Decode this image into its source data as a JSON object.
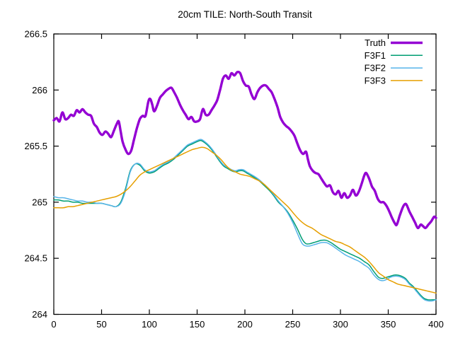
{
  "window": {
    "background": "#ffffff"
  },
  "chart_data": {
    "type": "line",
    "title": "20cm TILE: North-South Transit",
    "xlabel": "",
    "ylabel": "",
    "x_range": [
      0,
      400
    ],
    "y_range": [
      264.0,
      266.5
    ],
    "x_ticks": [
      0,
      50,
      100,
      150,
      200,
      250,
      300,
      350,
      400
    ],
    "x_tick_labels": [
      "0",
      "50",
      "100",
      "150",
      "200",
      "250",
      "300",
      "350",
      "400"
    ],
    "y_ticks": [
      264,
      264.5,
      265,
      265.5,
      266,
      266.5
    ],
    "y_tick_labels": [
      "264",
      "264.5",
      "265",
      "265.5",
      "266",
      "266.5"
    ],
    "grid": false,
    "legend_position": "top-right-inside",
    "axis_color": "#000000",
    "text_color": "#000000",
    "series": [
      {
        "name": "Truth",
        "color": "#9400d3",
        "line_width": 3.4,
        "x": [
          0,
          3,
          6,
          9,
          12,
          15,
          18,
          21,
          24,
          27,
          30,
          33,
          36,
          39,
          42,
          45,
          48,
          51,
          54,
          57,
          60,
          63,
          66,
          68,
          70,
          72,
          75,
          78,
          81,
          84,
          87,
          90,
          93,
          96,
          99,
          101,
          103,
          105,
          108,
          111,
          114,
          117,
          120,
          123,
          126,
          129,
          132,
          135,
          138,
          141,
          144,
          147,
          150,
          153,
          156,
          159,
          162,
          165,
          168,
          171,
          174,
          177,
          180,
          183,
          186,
          189,
          192,
          195,
          198,
          201,
          204,
          207,
          210,
          213,
          216,
          219,
          222,
          225,
          228,
          231,
          234,
          237,
          240,
          243,
          246,
          249,
          252,
          255,
          258,
          261,
          264,
          266,
          268,
          271,
          274,
          277,
          280,
          283,
          286,
          289,
          292,
          295,
          298,
          301,
          304,
          307,
          310,
          313,
          316,
          319,
          322,
          325,
          327,
          330,
          333,
          336,
          339,
          342,
          345,
          348,
          351,
          354,
          357,
          359,
          362,
          365,
          367,
          369,
          372,
          375,
          378,
          381,
          384,
          386,
          389,
          392,
          395,
          398,
          400
        ],
        "y": [
          265.73,
          265.75,
          265.72,
          265.8,
          265.74,
          265.75,
          265.78,
          265.77,
          265.82,
          265.8,
          265.83,
          265.8,
          265.78,
          265.77,
          265.7,
          265.67,
          265.62,
          265.6,
          265.63,
          265.61,
          265.58,
          265.64,
          265.7,
          265.72,
          265.63,
          265.54,
          265.47,
          265.43,
          265.46,
          265.56,
          265.66,
          265.74,
          265.77,
          265.77,
          265.9,
          265.92,
          265.87,
          265.81,
          265.86,
          265.93,
          265.96,
          265.99,
          266.01,
          266.02,
          265.98,
          265.93,
          265.87,
          265.82,
          265.78,
          265.74,
          265.76,
          265.72,
          265.72,
          265.74,
          265.83,
          265.78,
          265.78,
          265.82,
          265.86,
          265.91,
          266.0,
          266.1,
          266.13,
          266.1,
          266.15,
          266.13,
          266.16,
          266.15,
          266.08,
          266.04,
          266.03,
          265.96,
          265.92,
          265.98,
          266.02,
          266.04,
          266.04,
          266.01,
          265.98,
          265.92,
          265.85,
          265.76,
          265.71,
          265.68,
          265.66,
          265.63,
          265.59,
          265.52,
          265.46,
          265.43,
          265.45,
          265.38,
          265.32,
          265.28,
          265.26,
          265.25,
          265.21,
          265.17,
          265.14,
          265.15,
          265.09,
          265.07,
          265.1,
          265.04,
          265.08,
          265.04,
          265.06,
          265.11,
          265.06,
          265.09,
          265.16,
          265.24,
          265.26,
          265.21,
          265.14,
          265.1,
          265.03,
          265.0,
          265.0,
          264.97,
          264.92,
          264.86,
          264.81,
          264.8,
          264.88,
          264.95,
          264.98,
          264.98,
          264.92,
          264.87,
          264.82,
          264.77,
          264.8,
          264.79,
          264.77,
          264.8,
          264.83,
          264.87,
          264.86
        ]
      },
      {
        "name": "F3F1",
        "color": "#009e73",
        "line_width": 1.5,
        "x": [
          0,
          5,
          10,
          15,
          20,
          25,
          30,
          35,
          40,
          45,
          50,
          55,
          60,
          65,
          70,
          75,
          80,
          85,
          90,
          95,
          100,
          105,
          110,
          115,
          120,
          125,
          130,
          135,
          140,
          145,
          150,
          154,
          158,
          162,
          166,
          170,
          174,
          178,
          182,
          186,
          190,
          194,
          198,
          202,
          206,
          210,
          215,
          220,
          225,
          230,
          235,
          240,
          245,
          250,
          255,
          260,
          264,
          268,
          272,
          276,
          280,
          285,
          290,
          295,
          300,
          305,
          310,
          315,
          320,
          325,
          330,
          335,
          340,
          344,
          348,
          352,
          356,
          360,
          364,
          368,
          372,
          376,
          380,
          384,
          388,
          392,
          396,
          400
        ],
        "y": [
          265.02,
          265.02,
          265.01,
          265.01,
          265.0,
          265.0,
          264.99,
          264.99,
          264.99,
          264.99,
          264.99,
          264.98,
          264.97,
          264.96,
          265.0,
          265.12,
          265.28,
          265.34,
          265.33,
          265.28,
          265.26,
          265.27,
          265.3,
          265.33,
          265.35,
          265.38,
          265.42,
          265.46,
          265.5,
          265.52,
          265.54,
          265.55,
          265.53,
          265.5,
          265.46,
          265.41,
          265.36,
          265.32,
          265.3,
          265.28,
          265.27,
          265.28,
          265.28,
          265.26,
          265.24,
          265.22,
          265.19,
          265.15,
          265.11,
          265.06,
          265.0,
          264.96,
          264.91,
          264.84,
          264.76,
          264.67,
          264.63,
          264.63,
          264.64,
          264.65,
          264.66,
          264.66,
          264.64,
          264.61,
          264.58,
          264.56,
          264.54,
          264.52,
          264.5,
          264.47,
          264.44,
          264.38,
          264.33,
          264.32,
          264.33,
          264.34,
          264.35,
          264.35,
          264.34,
          264.32,
          264.28,
          264.25,
          264.21,
          264.17,
          264.14,
          264.13,
          264.13,
          264.13
        ]
      },
      {
        "name": "F3F2",
        "color": "#56b4e9",
        "line_width": 1.5,
        "x": [
          0,
          5,
          10,
          15,
          20,
          25,
          30,
          35,
          40,
          45,
          50,
          55,
          60,
          65,
          70,
          75,
          80,
          85,
          90,
          95,
          100,
          105,
          110,
          115,
          120,
          125,
          130,
          135,
          140,
          145,
          150,
          154,
          158,
          162,
          166,
          170,
          174,
          178,
          182,
          186,
          190,
          194,
          198,
          202,
          206,
          210,
          215,
          220,
          225,
          230,
          235,
          240,
          245,
          250,
          255,
          260,
          264,
          268,
          272,
          276,
          280,
          285,
          290,
          295,
          300,
          305,
          310,
          315,
          320,
          325,
          330,
          335,
          340,
          344,
          348,
          352,
          356,
          360,
          364,
          368,
          372,
          376,
          380,
          384,
          388,
          392,
          396,
          400
        ],
        "y": [
          265.05,
          265.04,
          265.04,
          265.03,
          265.02,
          265.01,
          265.01,
          265.0,
          265.0,
          264.99,
          264.99,
          264.98,
          264.97,
          264.96,
          264.99,
          265.1,
          265.27,
          265.34,
          265.34,
          265.29,
          265.27,
          265.28,
          265.31,
          265.34,
          265.36,
          265.39,
          265.43,
          265.47,
          265.51,
          265.53,
          265.55,
          265.56,
          265.54,
          265.51,
          265.47,
          265.42,
          265.37,
          265.33,
          265.31,
          265.29,
          265.28,
          265.29,
          265.29,
          265.27,
          265.25,
          265.23,
          265.2,
          265.16,
          265.12,
          265.07,
          265.01,
          264.96,
          264.9,
          264.82,
          264.72,
          264.63,
          264.61,
          264.61,
          264.62,
          264.63,
          264.64,
          264.64,
          264.62,
          264.59,
          264.56,
          264.53,
          264.51,
          264.49,
          264.47,
          264.44,
          264.41,
          264.35,
          264.31,
          264.3,
          264.31,
          264.33,
          264.34,
          264.34,
          264.33,
          264.31,
          264.27,
          264.24,
          264.2,
          264.16,
          264.13,
          264.12,
          264.12,
          264.13
        ]
      },
      {
        "name": "F3F3",
        "color": "#e69f00",
        "line_width": 1.5,
        "x": [
          0,
          5,
          10,
          15,
          20,
          25,
          30,
          35,
          40,
          45,
          50,
          55,
          60,
          65,
          70,
          75,
          80,
          85,
          90,
          95,
          100,
          105,
          110,
          115,
          120,
          125,
          130,
          135,
          140,
          145,
          150,
          155,
          160,
          165,
          170,
          175,
          180,
          185,
          190,
          195,
          200,
          205,
          210,
          215,
          220,
          225,
          230,
          235,
          240,
          245,
          250,
          255,
          260,
          265,
          270,
          275,
          280,
          285,
          290,
          295,
          300,
          305,
          310,
          315,
          320,
          325,
          330,
          335,
          340,
          345,
          350,
          355,
          360,
          365,
          370,
          375,
          380,
          385,
          390,
          395,
          400
        ],
        "y": [
          264.95,
          264.95,
          264.95,
          264.96,
          264.96,
          264.97,
          264.98,
          264.99,
          265.0,
          265.01,
          265.02,
          265.03,
          265.04,
          265.05,
          265.07,
          265.1,
          265.14,
          265.19,
          265.24,
          265.27,
          265.29,
          265.31,
          265.33,
          265.35,
          265.37,
          265.39,
          265.41,
          265.43,
          265.45,
          265.47,
          265.48,
          265.49,
          265.48,
          265.45,
          265.42,
          265.38,
          265.33,
          265.29,
          265.27,
          265.25,
          265.24,
          265.23,
          265.21,
          265.19,
          265.16,
          265.12,
          265.08,
          265.04,
          265.0,
          264.96,
          264.91,
          264.86,
          264.82,
          264.79,
          264.77,
          264.74,
          264.71,
          264.69,
          264.67,
          264.65,
          264.64,
          264.62,
          264.6,
          264.57,
          264.54,
          264.51,
          264.47,
          264.42,
          264.37,
          264.34,
          264.31,
          264.29,
          264.27,
          264.26,
          264.25,
          264.24,
          264.23,
          264.22,
          264.21,
          264.2,
          264.19
        ]
      }
    ]
  }
}
